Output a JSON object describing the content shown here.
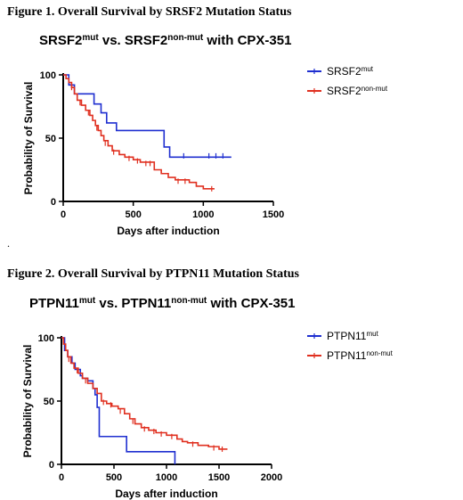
{
  "figure1": {
    "caption": "Figure 1. Overall Survival by SRSF2 Mutation Status"
  },
  "figure2": {
    "caption": "Figure 2. Overall Survival by PTPN11 Mutation Status"
  },
  "separator": ".",
  "chart_data": [
    {
      "type": "line",
      "title_parts": [
        {
          "text": "SRSF2",
          "sup": false
        },
        {
          "text": "mut",
          "sup": true
        },
        {
          "text": " vs. SRSF2",
          "sup": false
        },
        {
          "text": "non-mut",
          "sup": true
        },
        {
          "text": " with CPX-351",
          "sup": false
        }
      ],
      "xlabel": "Days after induction",
      "ylabel": "Probability of Survival",
      "xlim": [
        0,
        1500
      ],
      "ylim": [
        0,
        100
      ],
      "xticks": [
        0,
        500,
        1000,
        1500
      ],
      "yticks": [
        0,
        50,
        100
      ],
      "grid": false,
      "legend_position": "top-right",
      "series": [
        {
          "name_parts": [
            {
              "text": "SRSF2",
              "sup": false
            },
            {
              "text": "mut",
              "sup": true
            }
          ],
          "color": "#1f2fd0",
          "step": [
            [
              0,
              100
            ],
            [
              40,
              92
            ],
            [
              80,
              85
            ],
            [
              220,
              77
            ],
            [
              270,
              77
            ],
            [
              270,
              70
            ],
            [
              310,
              70
            ],
            [
              310,
              62
            ],
            [
              380,
              62
            ],
            [
              380,
              56
            ],
            [
              720,
              56
            ],
            [
              720,
              43
            ],
            [
              760,
              43
            ],
            [
              760,
              35
            ],
            [
              1200,
              35
            ]
          ],
          "censor": [
            [
              860,
              36
            ],
            [
              1040,
              36
            ],
            [
              1090,
              36
            ],
            [
              1140,
              36
            ]
          ]
        },
        {
          "name_parts": [
            {
              "text": "SRSF2",
              "sup": false
            },
            {
              "text": "non-mut",
              "sup": true
            }
          ],
          "color": "#e03020",
          "step": [
            [
              0,
              100
            ],
            [
              20,
              97
            ],
            [
              40,
              94
            ],
            [
              60,
              90
            ],
            [
              80,
              85
            ],
            [
              100,
              80
            ],
            [
              130,
              76
            ],
            [
              160,
              72
            ],
            [
              190,
              68
            ],
            [
              210,
              64
            ],
            [
              230,
              60
            ],
            [
              250,
              56
            ],
            [
              270,
              52
            ],
            [
              290,
              48
            ],
            [
              320,
              44
            ],
            [
              350,
              40
            ],
            [
              400,
              37
            ],
            [
              440,
              35
            ],
            [
              500,
              33
            ],
            [
              550,
              31
            ],
            [
              650,
              30
            ],
            [
              650,
              25
            ],
            [
              700,
              22
            ],
            [
              750,
              19
            ],
            [
              800,
              17
            ],
            [
              900,
              15
            ],
            [
              950,
              12
            ],
            [
              1000,
              10
            ],
            [
              1080,
              10
            ]
          ],
          "censor": [
            [
              60,
              90
            ],
            [
              120,
              78
            ],
            [
              180,
              70
            ],
            [
              240,
              58
            ],
            [
              300,
              46
            ],
            [
              360,
              39
            ],
            [
              470,
              34
            ],
            [
              530,
              32
            ],
            [
              590,
              30
            ],
            [
              620,
              30
            ],
            [
              820,
              16
            ],
            [
              870,
              16
            ],
            [
              1060,
              10
            ]
          ]
        }
      ]
    },
    {
      "type": "line",
      "title_parts": [
        {
          "text": "PTPN11",
          "sup": false
        },
        {
          "text": "mut",
          "sup": true
        },
        {
          "text": " vs. PTPN11",
          "sup": false
        },
        {
          "text": "non-mut",
          "sup": true
        },
        {
          "text": " with CPX-351",
          "sup": false
        }
      ],
      "xlabel": "Days after induction",
      "ylabel": "Probability of Survival",
      "xlim": [
        0,
        2000
      ],
      "ylim": [
        0,
        100
      ],
      "xticks": [
        0,
        500,
        1000,
        1500,
        2000
      ],
      "yticks": [
        0,
        50,
        100
      ],
      "grid": false,
      "legend_position": "top-right",
      "series": [
        {
          "name_parts": [
            {
              "text": "PTPN11",
              "sup": false
            },
            {
              "text": "mut",
              "sup": true
            }
          ],
          "color": "#1f2fd0",
          "step": [
            [
              0,
              100
            ],
            [
              30,
              90
            ],
            [
              60,
              85
            ],
            [
              100,
              80
            ],
            [
              130,
              75
            ],
            [
              180,
              70
            ],
            [
              200,
              68
            ],
            [
              250,
              66
            ],
            [
              300,
              60
            ],
            [
              320,
              55
            ],
            [
              340,
              45
            ],
            [
              360,
              22
            ],
            [
              620,
              22
            ],
            [
              620,
              10
            ],
            [
              1080,
              10
            ],
            [
              1080,
              0
            ]
          ],
          "censor": []
        },
        {
          "name_parts": [
            {
              "text": "PTPN11",
              "sup": false
            },
            {
              "text": "non-mut",
              "sup": true
            }
          ],
          "color": "#e03020",
          "step": [
            [
              0,
              100
            ],
            [
              20,
              95
            ],
            [
              40,
              90
            ],
            [
              60,
              85
            ],
            [
              90,
              80
            ],
            [
              120,
              76
            ],
            [
              160,
              72
            ],
            [
              200,
              68
            ],
            [
              250,
              64
            ],
            [
              300,
              60
            ],
            [
              340,
              56
            ],
            [
              380,
              50
            ],
            [
              430,
              48
            ],
            [
              480,
              46
            ],
            [
              540,
              44
            ],
            [
              600,
              40
            ],
            [
              650,
              36
            ],
            [
              700,
              32
            ],
            [
              760,
              29
            ],
            [
              830,
              27
            ],
            [
              900,
              25
            ],
            [
              1000,
              23
            ],
            [
              1100,
              20
            ],
            [
              1150,
              18
            ],
            [
              1200,
              17
            ],
            [
              1300,
              15
            ],
            [
              1400,
              14
            ],
            [
              1500,
              12
            ],
            [
              1580,
              12
            ]
          ],
          "censor": [
            [
              70,
              83
            ],
            [
              150,
              74
            ],
            [
              230,
              66
            ],
            [
              400,
              49
            ],
            [
              470,
              47
            ],
            [
              560,
              42
            ],
            [
              680,
              34
            ],
            [
              790,
              28
            ],
            [
              880,
              26
            ],
            [
              950,
              24
            ],
            [
              1050,
              22
            ],
            [
              1250,
              16
            ],
            [
              1450,
              13
            ],
            [
              1530,
              12
            ]
          ]
        }
      ]
    }
  ]
}
